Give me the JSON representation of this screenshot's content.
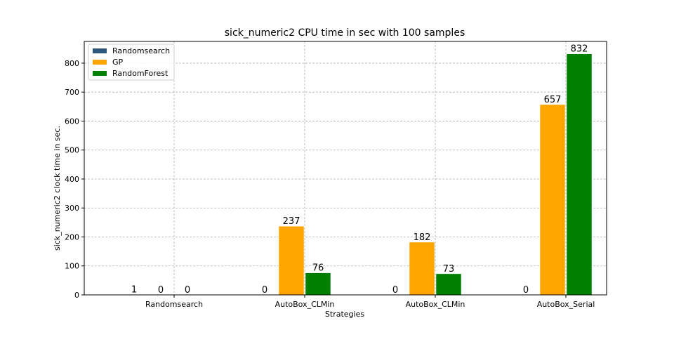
{
  "chart_data": {
    "type": "bar",
    "title": "sick_numeric2 CPU time in sec with 100 samples",
    "xlabel": "Strategies",
    "ylabel": "sick_numeric2 clock time in sec.",
    "categories": [
      "Randomsearch",
      "AutoBox_CLMin",
      "AutoBox_CLMin",
      "AutoBox_Serial"
    ],
    "series": [
      {
        "name": "Randomsearch",
        "color": "#2c567a",
        "values": [
          1,
          0,
          0,
          0
        ]
      },
      {
        "name": "GP",
        "color": "#ffa500",
        "values": [
          0,
          237,
          182,
          657
        ]
      },
      {
        "name": "RandomForest",
        "color": "#008000",
        "values": [
          0,
          76,
          73,
          832
        ]
      }
    ],
    "ylim": [
      0,
      875
    ],
    "yticks": [
      0,
      100,
      200,
      300,
      400,
      500,
      600,
      700,
      800
    ],
    "grid": true,
    "legend_position": "top-left"
  }
}
